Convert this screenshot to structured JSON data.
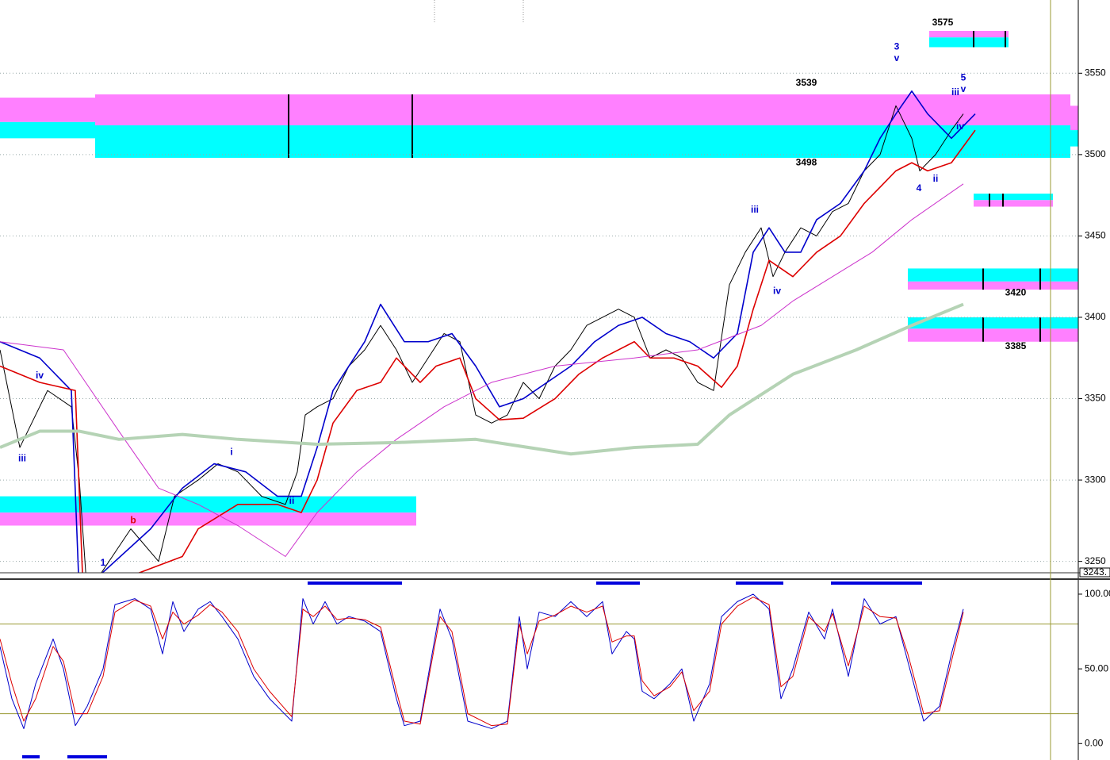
{
  "chart_data": [
    {
      "type": "line",
      "xlim": [
        0,
        136
      ],
      "ylim": [
        3243,
        3595
      ],
      "yticks": [
        3250,
        3300,
        3350,
        3400,
        3450,
        3500,
        3550
      ],
      "grid": true,
      "price_tag": {
        "value": 3243,
        "label": "3243."
      },
      "series": [
        {
          "color": "#000000",
          "x": [
            0,
            2.5,
            6,
            9,
            10,
            11,
            16.5,
            20,
            22,
            25,
            27.5,
            30,
            33,
            36,
            37.5,
            38.5,
            40,
            42,
            44,
            46,
            48,
            50,
            52,
            54,
            56,
            58,
            60,
            62,
            64,
            66,
            68,
            70,
            72,
            74,
            76,
            78,
            80,
            82,
            84,
            86,
            88,
            90,
            92,
            94,
            96,
            97.5,
            99,
            101,
            103,
            105,
            107,
            109,
            111,
            113,
            115,
            116,
            118,
            120,
            121.5
          ],
          "values": [
            3380,
            3320,
            3355,
            3345,
            3300,
            3230,
            3270,
            3250,
            3290,
            3300,
            3310,
            3305,
            3290,
            3285,
            3305,
            3340,
            3345,
            3350,
            3370,
            3380,
            3395,
            3380,
            3360,
            3375,
            3390,
            3385,
            3340,
            3335,
            3340,
            3360,
            3350,
            3370,
            3380,
            3395,
            3400,
            3405,
            3400,
            3375,
            3380,
            3375,
            3360,
            3355,
            3420,
            3440,
            3455,
            3425,
            3440,
            3455,
            3450,
            3465,
            3470,
            3490,
            3500,
            3530,
            3510,
            3490,
            3500,
            3515,
            3525
          ]
        },
        {
          "color": "#0000cc",
          "x": [
            0,
            5,
            9,
            10,
            19,
            23,
            27,
            31,
            35,
            38,
            40,
            42,
            46,
            48,
            51,
            54,
            57,
            60,
            63,
            66,
            69,
            72,
            75,
            78,
            81,
            84,
            87,
            90,
            93,
            95,
            97,
            99,
            101,
            103,
            106,
            109,
            111,
            113,
            115,
            117,
            120,
            123
          ],
          "values": [
            3385,
            3375,
            3355,
            3230,
            3270,
            3295,
            3310,
            3305,
            3290,
            3290,
            3320,
            3355,
            3385,
            3408,
            3385,
            3385,
            3390,
            3370,
            3345,
            3350,
            3360,
            3370,
            3385,
            3395,
            3400,
            3390,
            3385,
            3375,
            3390,
            3440,
            3455,
            3440,
            3440,
            3460,
            3470,
            3490,
            3510,
            3525,
            3539,
            3525,
            3510,
            3525
          ]
        },
        {
          "color": "#dd0000",
          "x": [
            0,
            5,
            9.5,
            10.5,
            23,
            25,
            30,
            35,
            38,
            40,
            42,
            45,
            48,
            50,
            53,
            55,
            58,
            60,
            63,
            66,
            70,
            73,
            76,
            80,
            82,
            85,
            88,
            91,
            93,
            95,
            97,
            100,
            103,
            106,
            109,
            111,
            113,
            115,
            117,
            120,
            123
          ],
          "values": [
            3370,
            3360,
            3355,
            3230,
            3253,
            3270,
            3285,
            3285,
            3280,
            3300,
            3335,
            3355,
            3360,
            3375,
            3360,
            3370,
            3375,
            3350,
            3337,
            3338,
            3350,
            3365,
            3375,
            3385,
            3375,
            3375,
            3370,
            3357,
            3370,
            3405,
            3435,
            3425,
            3440,
            3450,
            3470,
            3480,
            3490,
            3495,
            3490,
            3495,
            3515
          ]
        },
        {
          "color": "#cc33cc",
          "x": [
            0,
            8,
            15,
            20,
            25,
            30,
            36,
            40,
            45,
            50,
            56,
            62,
            70,
            80,
            88,
            96,
            100,
            105,
            110,
            115,
            121.5
          ],
          "values": [
            3385,
            3380,
            3330,
            3295,
            3285,
            3272,
            3253,
            3280,
            3305,
            3325,
            3345,
            3360,
            3370,
            3375,
            3380,
            3395,
            3410,
            3425,
            3440,
            3460,
            3482
          ]
        },
        {
          "color": "#b5d3b5",
          "x": [
            0,
            5,
            10,
            15,
            23,
            30,
            40,
            50,
            60,
            72,
            80,
            88,
            92,
            100,
            108,
            115,
            121.5
          ],
          "values": [
            3320,
            3330,
            3330,
            3325,
            3328,
            3325,
            3322,
            3323,
            3325,
            3316,
            3320,
            3322,
            3340,
            3365,
            3380,
            3395,
            3408
          ]
        }
      ],
      "zones": [
        {
          "x": [
            0,
            12
          ],
          "bands": [
            {
              "from": 3520,
              "to": 3535,
              "color": "#ff80ff"
            },
            {
              "from": 3510,
              "to": 3520,
              "color": "#00ffff"
            }
          ],
          "markers": []
        },
        {
          "x": [
            12,
            135
          ],
          "bands": [
            {
              "from": 3518,
              "to": 3537,
              "color": "#ff80ff"
            },
            {
              "from": 3498,
              "to": 3518,
              "color": "#00ffff"
            }
          ],
          "markers": [
            36.4,
            52
          ]
        },
        {
          "x": [
            135,
            136
          ],
          "bands": [
            {
              "from": 3515,
              "to": 3530,
              "color": "#ff80ff"
            },
            {
              "from": 3505,
              "to": 3515,
              "color": "#00ffff"
            }
          ],
          "markers": []
        },
        {
          "x": [
            0,
            52.5
          ],
          "bands": [
            {
              "from": 3280,
              "to": 3290,
              "color": "#00ffff"
            },
            {
              "from": 3272,
              "to": 3280,
              "color": "#ff80ff"
            }
          ],
          "markers": []
        },
        {
          "x": [
            117.2,
            127.2
          ],
          "bands": [
            {
              "from": 3572,
              "to": 3576,
              "color": "#ff80ff"
            },
            {
              "from": 3566,
              "to": 3572,
              "color": "#00ffff"
            }
          ],
          "markers": [
            122.8,
            126.8
          ]
        },
        {
          "x": [
            122.8,
            132.8
          ],
          "bands": [
            {
              "from": 3472,
              "to": 3476,
              "color": "#00ffff"
            },
            {
              "from": 3468,
              "to": 3472,
              "color": "#ff80ff"
            }
          ],
          "markers": [
            124.8,
            126.5
          ]
        },
        {
          "x": [
            114.5,
            136
          ],
          "bands": [
            {
              "from": 3422,
              "to": 3430,
              "color": "#00ffff"
            },
            {
              "from": 3417,
              "to": 3422,
              "color": "#ff80ff"
            }
          ],
          "markers": [
            124,
            131.2
          ]
        },
        {
          "x": [
            114.5,
            136
          ],
          "bands": [
            {
              "from": 3393,
              "to": 3400,
              "color": "#00ffff"
            },
            {
              "from": 3385,
              "to": 3393,
              "color": "#ff80ff"
            }
          ],
          "markers": [
            124,
            131.2
          ]
        }
      ],
      "annotations": [
        {
          "text": "3575",
          "x": 118.9,
          "y": 3581,
          "color": "#000000"
        },
        {
          "text": "3539",
          "x": 101.7,
          "y": 3544,
          "color": "#000000"
        },
        {
          "text": "3498",
          "x": 101.7,
          "y": 3495,
          "color": "#000000"
        },
        {
          "text": "3420",
          "x": 128.1,
          "y": 3415,
          "color": "#000000"
        },
        {
          "text": "3385",
          "x": 128.1,
          "y": 3382,
          "color": "#000000"
        },
        {
          "text": "iv",
          "x": 5.0,
          "y": 3364,
          "color": "#0000cc"
        },
        {
          "text": "iii",
          "x": 2.8,
          "y": 3313,
          "color": "#0000cc"
        },
        {
          "text": "b",
          "x": 16.8,
          "y": 3275,
          "color": "#dd0000"
        },
        {
          "text": "1",
          "x": 13.0,
          "y": 3249,
          "color": "#0000cc"
        },
        {
          "text": "i",
          "x": 29.2,
          "y": 3317,
          "color": "#0000cc"
        },
        {
          "text": "ii",
          "x": 36.8,
          "y": 3287,
          "color": "#0000cc"
        },
        {
          "text": "iii",
          "x": 95.2,
          "y": 3466,
          "color": "#0000cc"
        },
        {
          "text": "iv",
          "x": 98.0,
          "y": 3416,
          "color": "#0000cc"
        },
        {
          "text": "3",
          "x": 113.1,
          "y": 3566,
          "color": "#0000cc"
        },
        {
          "text": "v",
          "x": 113.1,
          "y": 3559,
          "color": "#0000cc"
        },
        {
          "text": "4",
          "x": 115.9,
          "y": 3479,
          "color": "#0000cc"
        },
        {
          "text": "ii",
          "x": 118.0,
          "y": 3485,
          "color": "#0000cc"
        },
        {
          "text": "5",
          "x": 121.5,
          "y": 3547,
          "color": "#0000cc"
        },
        {
          "text": "v",
          "x": 121.5,
          "y": 3540,
          "color": "#0000cc"
        },
        {
          "text": "iii",
          "x": 120.5,
          "y": 3538,
          "color": "#0000cc"
        },
        {
          "text": "iv",
          "x": 121.1,
          "y": 3517,
          "color": "#0000cc"
        }
      ]
    },
    {
      "type": "line",
      "xlim": [
        0,
        136
      ],
      "ylim": [
        -11,
        109
      ],
      "yticks": [
        {
          "value": 100,
          "label": "100.00"
        },
        {
          "value": 50,
          "label": "50.00"
        },
        {
          "value": 0,
          "label": "0.00"
        }
      ],
      "hlines": [
        80,
        20
      ],
      "hline_color": "#999933",
      "x": [
        0,
        1.5,
        3,
        4.5,
        6.7,
        8,
        9.5,
        11,
        13,
        14.5,
        17,
        19,
        20.5,
        21.8,
        23.2,
        25,
        26.5,
        28,
        30,
        32,
        34,
        36.8,
        38.2,
        39.5,
        41,
        42.5,
        44,
        46,
        48,
        50,
        51,
        53,
        55.5,
        57,
        59,
        62,
        64,
        65.5,
        66.5,
        68,
        70,
        72,
        74,
        76,
        77.2,
        79,
        80,
        81,
        82.5,
        84.5,
        86,
        87.5,
        89.5,
        91,
        93,
        95,
        97,
        98.5,
        100,
        102,
        104,
        105,
        107,
        109,
        111,
        113,
        114.5,
        116.5,
        118.5,
        120,
        121.5
      ],
      "series": [
        {
          "color": "#0000cc",
          "values": [
            65,
            30,
            10,
            40,
            70,
            50,
            12,
            25,
            50,
            93,
            97,
            90,
            60,
            95,
            75,
            90,
            95,
            85,
            70,
            45,
            30,
            15,
            97,
            80,
            95,
            80,
            85,
            82,
            75,
            30,
            12,
            15,
            90,
            70,
            15,
            10,
            15,
            85,
            50,
            88,
            85,
            95,
            85,
            95,
            60,
            75,
            70,
            35,
            30,
            40,
            50,
            15,
            40,
            85,
            95,
            100,
            90,
            30,
            50,
            88,
            70,
            90,
            45,
            97,
            80,
            85,
            55,
            15,
            25,
            60,
            90
          ]
        },
        {
          "color": "#dd0000",
          "values": [
            70,
            40,
            15,
            30,
            65,
            55,
            20,
            20,
            45,
            88,
            96,
            92,
            70,
            88,
            80,
            86,
            93,
            88,
            75,
            50,
            35,
            18,
            90,
            85,
            92,
            83,
            84,
            83,
            78,
            35,
            15,
            13,
            85,
            75,
            20,
            12,
            13,
            80,
            60,
            82,
            86,
            92,
            88,
            92,
            68,
            72,
            72,
            42,
            32,
            38,
            48,
            22,
            35,
            80,
            92,
            98,
            93,
            38,
            45,
            85,
            75,
            87,
            52,
            92,
            85,
            84,
            60,
            20,
            22,
            55,
            88
          ]
        }
      ]
    }
  ]
}
